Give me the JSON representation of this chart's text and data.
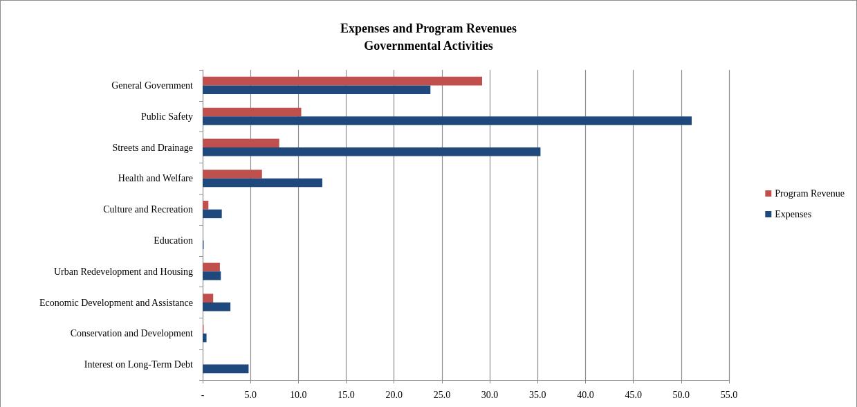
{
  "chart_data": {
    "type": "bar",
    "orientation": "horizontal",
    "title": "Expenses and Program Revenues",
    "subtitle": "Governmental Activities",
    "categories": [
      "General Government",
      "Public Safety",
      "Streets and Drainage",
      "Health and Welfare",
      "Culture and Recreation",
      "Education",
      "Urban Redevelopment and Housing",
      "Economic Development and Assistance",
      "Conservation and Development",
      "Interest on Long-Term Debt"
    ],
    "series": [
      {
        "name": "Program Revenue",
        "color": "#c0504d",
        "values": [
          29.2,
          10.3,
          8.0,
          6.2,
          0.6,
          0,
          1.8,
          1.1,
          0.1,
          0
        ]
      },
      {
        "name": "Expenses",
        "color": "#1f497d",
        "values": [
          23.8,
          51.1,
          35.3,
          12.5,
          2.0,
          0.1,
          1.9,
          2.9,
          0.4,
          4.8
        ]
      }
    ],
    "xlim": [
      0,
      55
    ],
    "xticks": [
      {
        "value": 0,
        "label": "-"
      },
      {
        "value": 5,
        "label": "5.0"
      },
      {
        "value": 10,
        "label": "10.0"
      },
      {
        "value": 15,
        "label": "15.0"
      },
      {
        "value": 20,
        "label": "20.0"
      },
      {
        "value": 25,
        "label": "25.0"
      },
      {
        "value": 30,
        "label": "30.0"
      },
      {
        "value": 35,
        "label": "35.0"
      },
      {
        "value": 40,
        "label": "40.0"
      },
      {
        "value": 45,
        "label": "45.0"
      },
      {
        "value": 50,
        "label": "50.0"
      },
      {
        "value": 55,
        "label": "55.0"
      }
    ],
    "grid": "x",
    "legend": "right"
  }
}
